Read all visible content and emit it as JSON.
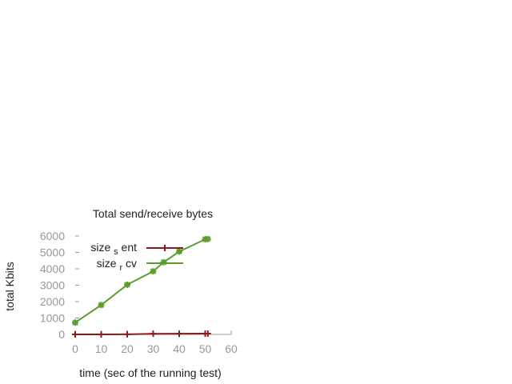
{
  "chart_data": {
    "type": "line",
    "title": "Total send/receive bytes",
    "xlabel": "time (sec of the running test)",
    "ylabel": "total Kbits",
    "xlim": [
      0,
      60
    ],
    "ylim": [
      0,
      6000
    ],
    "xticks": [
      0,
      10,
      20,
      30,
      40,
      50,
      60
    ],
    "yticks": [
      0,
      1000,
      2000,
      3000,
      4000,
      5000,
      6000
    ],
    "grid": false,
    "legend_position": "top-left",
    "legend": [
      {
        "prefix": "size",
        "sub": "s",
        "suffix": "ent"
      },
      {
        "prefix": "size",
        "sub": "r",
        "suffix": "cv"
      }
    ],
    "series": [
      {
        "name": "size_sent",
        "color": "#8b1a1a",
        "marker": "plus",
        "x": [
          0,
          10,
          20,
          30,
          40,
          50,
          51
        ],
        "y": [
          0,
          0,
          5,
          40,
          45,
          50,
          50
        ]
      },
      {
        "name": "size_rcv",
        "color": "#5a9e2f",
        "marker": "star",
        "x": [
          0,
          10,
          20,
          30,
          34,
          40,
          50,
          51
        ],
        "y": [
          720,
          1790,
          3030,
          3850,
          4400,
          5050,
          5800,
          5820
        ]
      }
    ]
  }
}
